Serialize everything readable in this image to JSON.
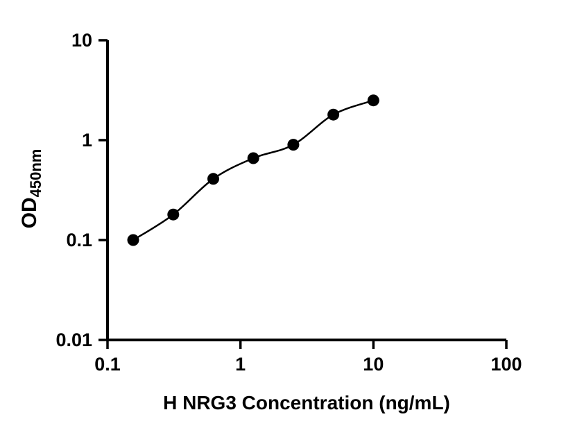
{
  "chart_data": {
    "type": "scatter",
    "title": "",
    "xlabel": "H NRG3 Concentration (ng/mL)",
    "ylabel_main": "OD",
    "ylabel_sub": "450nm",
    "x_scale": "log",
    "y_scale": "log",
    "xlim": [
      0.1,
      100
    ],
    "ylim": [
      0.01,
      10
    ],
    "x_ticks": [
      0.1,
      1,
      10,
      100
    ],
    "x_tick_labels": [
      "0.1",
      "1",
      "10",
      "100"
    ],
    "y_ticks": [
      0.01,
      0.1,
      1,
      10
    ],
    "y_tick_labels": [
      "0.01",
      "0.1",
      "1",
      "10"
    ],
    "x": [
      0.156,
      0.3125,
      0.625,
      1.25,
      2.5,
      5,
      10
    ],
    "y": [
      0.1,
      0.18,
      0.41,
      0.66,
      0.9,
      1.8,
      2.5
    ],
    "fit_curve": true,
    "legend": "none",
    "grid": false,
    "point_color": "#000000",
    "line_color": "#000000",
    "axis_color": "#000000",
    "background_color": "#ffffff"
  }
}
